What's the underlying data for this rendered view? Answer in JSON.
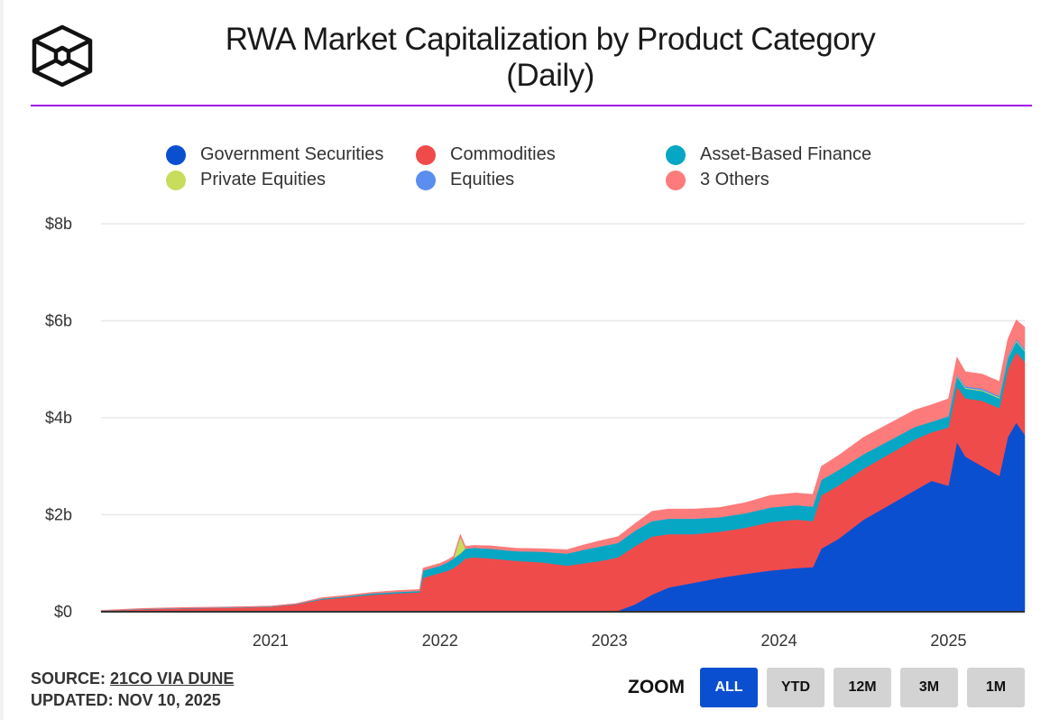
{
  "header": {
    "title_line1": "RWA Market Capitalization by Product Category",
    "title_line2": "(Daily)",
    "logo": "cube-logo-icon",
    "rule_color": "#a10fe6"
  },
  "legend": [
    {
      "label": "Government Securities",
      "color": "#0b4fd1"
    },
    {
      "label": "Commodities",
      "color": "#f04b4b"
    },
    {
      "label": "Asset-Based Finance",
      "color": "#06a7c4"
    },
    {
      "label": "Private Equities",
      "color": "#c7dd5b"
    },
    {
      "label": "Equities",
      "color": "#5b8ef0"
    },
    {
      "label": "3 Others",
      "color": "#fd7b7b"
    }
  ],
  "chart_data": {
    "type": "area",
    "stacked": true,
    "title": "RWA Market Capitalization by Product Category (Daily)",
    "xlabel": "",
    "ylabel": "",
    "ylim": [
      0,
      8
    ],
    "y_unit": "$ billions",
    "y_ticks": [
      {
        "value": 0,
        "label": "$0"
      },
      {
        "value": 2,
        "label": "$2b"
      },
      {
        "value": 4,
        "label": "$4b"
      },
      {
        "value": 6,
        "label": "$6b"
      },
      {
        "value": 8,
        "label": "$8b"
      }
    ],
    "x_range": [
      2020.0,
      2025.45
    ],
    "x_ticks": [
      {
        "value": 2021,
        "label": "2021"
      },
      {
        "value": 2022,
        "label": "2022"
      },
      {
        "value": 2023,
        "label": "2023"
      },
      {
        "value": 2024,
        "label": "2024"
      },
      {
        "value": 2025,
        "label": "2025"
      }
    ],
    "grid": true,
    "legend_position": "top",
    "x": [
      2020.0,
      2020.25,
      2020.5,
      2020.75,
      2021.0,
      2021.15,
      2021.3,
      2021.45,
      2021.6,
      2021.75,
      2021.88,
      2021.9,
      2022.0,
      2022.05,
      2022.08,
      2022.12,
      2022.15,
      2022.2,
      2022.3,
      2022.45,
      2022.6,
      2022.75,
      2022.85,
      2022.95,
      2023.05,
      2023.15,
      2023.25,
      2023.35,
      2023.5,
      2023.65,
      2023.8,
      2023.95,
      2024.1,
      2024.2,
      2024.25,
      2024.35,
      2024.5,
      2024.65,
      2024.8,
      2024.9,
      2025.0,
      2025.05,
      2025.1,
      2025.2,
      2025.3,
      2025.35,
      2025.4,
      2025.45
    ],
    "series": [
      {
        "name": "Government Securities",
        "color": "#0b4fd1",
        "values": [
          0,
          0,
          0,
          0,
          0,
          0,
          0,
          0,
          0,
          0,
          0,
          0,
          0,
          0,
          0,
          0,
          0,
          0,
          0,
          0,
          0,
          0,
          0,
          0,
          0.02,
          0.15,
          0.35,
          0.5,
          0.6,
          0.7,
          0.78,
          0.85,
          0.9,
          0.92,
          1.3,
          1.5,
          1.9,
          2.2,
          2.5,
          2.7,
          2.6,
          3.5,
          3.2,
          3.0,
          2.8,
          3.6,
          3.9,
          3.65
        ]
      },
      {
        "name": "Commodities",
        "color": "#f04b4b",
        "values": [
          0.02,
          0.05,
          0.07,
          0.08,
          0.1,
          0.15,
          0.25,
          0.3,
          0.35,
          0.38,
          0.4,
          0.7,
          0.8,
          0.85,
          0.9,
          1.0,
          1.1,
          1.12,
          1.1,
          1.05,
          1.02,
          0.95,
          1.0,
          1.05,
          1.1,
          1.2,
          1.2,
          1.1,
          1.0,
          0.95,
          0.95,
          1.0,
          1.0,
          0.95,
          1.1,
          1.1,
          1.05,
          1.05,
          1.05,
          1.0,
          1.2,
          1.15,
          1.2,
          1.35,
          1.4,
          1.4,
          1.45,
          1.5
        ]
      },
      {
        "name": "Asset-Based Finance",
        "color": "#06a7c4",
        "values": [
          0.005,
          0.01,
          0.01,
          0.01,
          0.01,
          0.01,
          0.02,
          0.02,
          0.03,
          0.03,
          0.03,
          0.15,
          0.15,
          0.18,
          0.2,
          0.2,
          0.2,
          0.2,
          0.2,
          0.2,
          0.22,
          0.25,
          0.28,
          0.3,
          0.3,
          0.32,
          0.32,
          0.32,
          0.32,
          0.3,
          0.3,
          0.3,
          0.3,
          0.3,
          0.32,
          0.32,
          0.3,
          0.28,
          0.26,
          0.22,
          0.22,
          0.2,
          0.2,
          0.2,
          0.2,
          0.22,
          0.22,
          0.22
        ]
      },
      {
        "name": "Private Equities",
        "color": "#c7dd5b",
        "values": [
          0,
          0,
          0,
          0,
          0,
          0,
          0,
          0,
          0,
          0,
          0,
          0,
          0,
          0,
          0,
          0.35,
          0,
          0,
          0,
          0,
          0,
          0,
          0,
          0,
          0,
          0,
          0,
          0,
          0,
          0,
          0,
          0,
          0,
          0,
          0,
          0,
          0,
          0,
          0,
          0,
          0,
          0.02,
          0.02,
          0.02,
          0.02,
          0.02,
          0.02,
          0.02
        ]
      },
      {
        "name": "Equities",
        "color": "#5b8ef0",
        "values": [
          0,
          0,
          0,
          0,
          0,
          0,
          0,
          0,
          0,
          0,
          0,
          0,
          0,
          0,
          0,
          0,
          0,
          0,
          0,
          0,
          0,
          0,
          0,
          0,
          0,
          0,
          0,
          0,
          0,
          0,
          0,
          0,
          0,
          0,
          0,
          0,
          0,
          0,
          0,
          0,
          0.02,
          0.03,
          0.03,
          0.03,
          0.03,
          0.03,
          0.03,
          0.03
        ]
      },
      {
        "name": "3 Others",
        "color": "#fd7b7b",
        "values": [
          0.005,
          0.01,
          0.01,
          0.01,
          0.01,
          0.01,
          0.02,
          0.02,
          0.02,
          0.03,
          0.03,
          0.05,
          0.05,
          0.05,
          0.05,
          0.05,
          0.05,
          0.05,
          0.06,
          0.06,
          0.06,
          0.08,
          0.1,
          0.12,
          0.13,
          0.15,
          0.2,
          0.2,
          0.2,
          0.2,
          0.22,
          0.25,
          0.25,
          0.25,
          0.28,
          0.3,
          0.35,
          0.35,
          0.35,
          0.35,
          0.35,
          0.35,
          0.3,
          0.3,
          0.3,
          0.35,
          0.4,
          0.45
        ]
      }
    ]
  },
  "footer": {
    "source_label": "SOURCE: ",
    "source_link": "21CO VIA DUNE",
    "updated": "UPDATED: NOV 10, 2025"
  },
  "zoom": {
    "label": "ZOOM",
    "buttons": [
      {
        "label": "ALL",
        "active": true
      },
      {
        "label": "YTD",
        "active": false
      },
      {
        "label": "12M",
        "active": false
      },
      {
        "label": "3M",
        "active": false
      },
      {
        "label": "1M",
        "active": false
      }
    ]
  }
}
